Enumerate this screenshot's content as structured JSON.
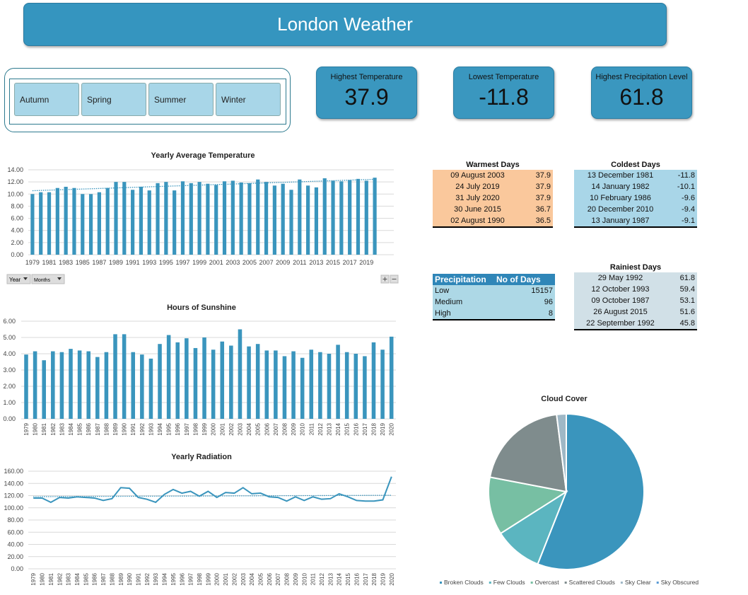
{
  "header": {
    "title": "London Weather"
  },
  "slicer": {
    "buttons": [
      "Autumn",
      "Spring",
      "Summer",
      "Winter"
    ]
  },
  "kpis": [
    {
      "label": "Highest Temperature",
      "value": 37.9
    },
    {
      "label": "Lowest Temperature",
      "value": -11.8
    },
    {
      "label": "Highest Precipitation Level",
      "value": 61.8
    }
  ],
  "tables": {
    "warmest": {
      "title": "Warmest Days",
      "rows": [
        [
          "09 August 2003",
          37.9
        ],
        [
          "24 July 2019",
          37.9
        ],
        [
          "31 July 2020",
          37.9
        ],
        [
          "30 June 2015",
          36.7
        ],
        [
          "02 August 1990",
          36.5
        ]
      ]
    },
    "coldest": {
      "title": "Coldest Days",
      "rows": [
        [
          "13 December 1981",
          -11.8
        ],
        [
          "14 January 1982",
          -10.1
        ],
        [
          "10 February 1986",
          -9.6
        ],
        [
          "20 December 2010",
          -9.4
        ],
        [
          "13 January 1987",
          -9.1
        ]
      ]
    },
    "precipitation": {
      "columns": [
        "Precipitation",
        "No of Days"
      ],
      "rows": [
        [
          "Low",
          15157
        ],
        [
          "Medium",
          96
        ],
        [
          "High",
          8
        ]
      ]
    },
    "rainiest": {
      "title": "Rainiest Days",
      "rows": [
        [
          "29 May 1992",
          61.8
        ],
        [
          "12 October 1993",
          59.4
        ],
        [
          "09 October 1987",
          53.1
        ],
        [
          "26 August 2015",
          51.6
        ],
        [
          "22 September 1992",
          45.8
        ]
      ]
    }
  },
  "controls": {
    "fields": [
      "Year",
      "Months"
    ]
  },
  "chart_data": [
    {
      "type": "bar",
      "title": "Yearly Average Temperature",
      "categories": [
        "1979",
        null,
        "1981",
        null,
        "1983",
        null,
        "1985",
        null,
        "1987",
        null,
        "1989",
        null,
        "1991",
        null,
        "1993",
        null,
        "1995",
        null,
        "1997",
        null,
        "1999",
        null,
        "2001",
        null,
        "2003",
        null,
        "2005",
        null,
        "2007",
        null,
        "2009",
        null,
        "2011",
        null,
        "2013",
        null,
        "2015",
        null,
        "2017",
        null,
        "2019",
        null
      ],
      "values": [
        10.0,
        10.3,
        10.3,
        11.0,
        11.2,
        11.0,
        10.0,
        10.0,
        10.3,
        11.0,
        12.0,
        12.0,
        10.7,
        11.2,
        10.6,
        11.8,
        12.0,
        10.6,
        12.1,
        11.8,
        12.0,
        11.7,
        11.5,
        12.1,
        12.2,
        11.9,
        11.8,
        12.4,
        12.0,
        11.4,
        11.7,
        10.7,
        12.4,
        11.4,
        11.1,
        12.6,
        12.2,
        12.1,
        12.3,
        12.5,
        12.2,
        12.7
      ],
      "color": "#3a95bd",
      "ylim": [
        0,
        14
      ],
      "yticks": [
        {
          "value": 0,
          "label": "0.00"
        },
        {
          "value": 2,
          "label": "2.00"
        },
        {
          "value": 4,
          "label": "4.00"
        },
        {
          "value": 6,
          "label": "6.00"
        },
        {
          "value": 8,
          "label": "8.00"
        },
        {
          "value": 10,
          "label": "10.00"
        },
        {
          "value": 12,
          "label": "12.00"
        },
        {
          "value": 14,
          "label": "14.00"
        }
      ],
      "grid": true,
      "trendline": true
    },
    {
      "type": "bar",
      "title": "Hours of Sunshine",
      "categories": [
        "1979",
        "1980",
        "1981",
        "1982",
        "1983",
        "1984",
        "1985",
        "1986",
        "1987",
        "1988",
        "1989",
        "1990",
        "1991",
        "1992",
        "1993",
        "1994",
        "1995",
        "1996",
        "1997",
        "1998",
        "1999",
        "2000",
        "2001",
        "2002",
        "2003",
        "2004",
        "2005",
        "2006",
        "2007",
        "2008",
        "2009",
        "2010",
        "2011",
        "2012",
        "2013",
        "2014",
        "2015",
        "2016",
        "2017",
        "2018",
        "2019",
        "2020"
      ],
      "values": [
        3.95,
        4.15,
        3.6,
        4.15,
        4.1,
        4.3,
        4.2,
        4.15,
        3.8,
        4.1,
        5.2,
        5.2,
        4.1,
        3.95,
        3.7,
        4.6,
        5.15,
        4.7,
        4.95,
        4.35,
        5.0,
        4.25,
        4.75,
        4.5,
        5.5,
        4.45,
        4.6,
        4.2,
        4.2,
        3.85,
        4.15,
        3.75,
        4.25,
        4.1,
        4.0,
        4.55,
        4.1,
        4.0,
        3.85,
        4.7,
        4.25,
        5.05
      ],
      "color": "#3a95bd",
      "ylim": [
        0,
        6
      ],
      "yticks": [
        {
          "value": 0,
          "label": "0.00"
        },
        {
          "value": 1,
          "label": "1.00"
        },
        {
          "value": 2,
          "label": "2.00"
        },
        {
          "value": 3,
          "label": "3.00"
        },
        {
          "value": 4,
          "label": "4.00"
        },
        {
          "value": 5,
          "label": "5.00"
        },
        {
          "value": 6,
          "label": "6.00"
        }
      ],
      "grid": true,
      "trendline": false
    },
    {
      "type": "line",
      "title": "Yearly Radiation",
      "categories": [
        "1979",
        "1980",
        "1981",
        "1982",
        "1983",
        "1984",
        "1985",
        "1986",
        "1987",
        "1988",
        "1989",
        "1990",
        "1991",
        "1992",
        "1993",
        "1994",
        "1995",
        "1996",
        "1997",
        "1998",
        "1999",
        "2000",
        "2001",
        "2002",
        "2003",
        "2004",
        "2005",
        "2006",
        "2007",
        "2008",
        "2009",
        "2010",
        "2011",
        "2012",
        "2013",
        "2014",
        "2015",
        "2016",
        "2017",
        "2018",
        "2019",
        "2020"
      ],
      "values": [
        116,
        116,
        109,
        117,
        116,
        118,
        117,
        116,
        112,
        115,
        133,
        132,
        117,
        114,
        109,
        122,
        130,
        124,
        127,
        119,
        127,
        117,
        125,
        124,
        133,
        123,
        124,
        118,
        117,
        111,
        118,
        112,
        118,
        114,
        115,
        123,
        118,
        112,
        111,
        111,
        113,
        151
      ],
      "color": "#3a95bd",
      "ylim": [
        0,
        160
      ],
      "yticks": [
        {
          "value": 0,
          "label": "0.00"
        },
        {
          "value": 20,
          "label": "20.00"
        },
        {
          "value": 40,
          "label": "40.00"
        },
        {
          "value": 60,
          "label": "60.00"
        },
        {
          "value": 80,
          "label": "80.00"
        },
        {
          "value": 100,
          "label": "100.00"
        },
        {
          "value": 120,
          "label": "120.00"
        },
        {
          "value": 140,
          "label": "140.00"
        },
        {
          "value": 160,
          "label": "160.00"
        }
      ],
      "grid": true,
      "trendline": true
    },
    {
      "type": "pie",
      "title": "Cloud Cover",
      "categories": [
        "Broken Clouds",
        "Few Clouds",
        "Overcast",
        "Scattered Clouds",
        "Sky Clear",
        "Sky Obscured"
      ],
      "values": [
        56,
        10,
        12,
        20,
        2,
        0
      ],
      "colors": [
        "#3a95bd",
        "#5bb5c0",
        "#77bfa3",
        "#7f8c8d",
        "#9fb8c6",
        "#5a9bd5"
      ],
      "legend": "bottom"
    }
  ]
}
